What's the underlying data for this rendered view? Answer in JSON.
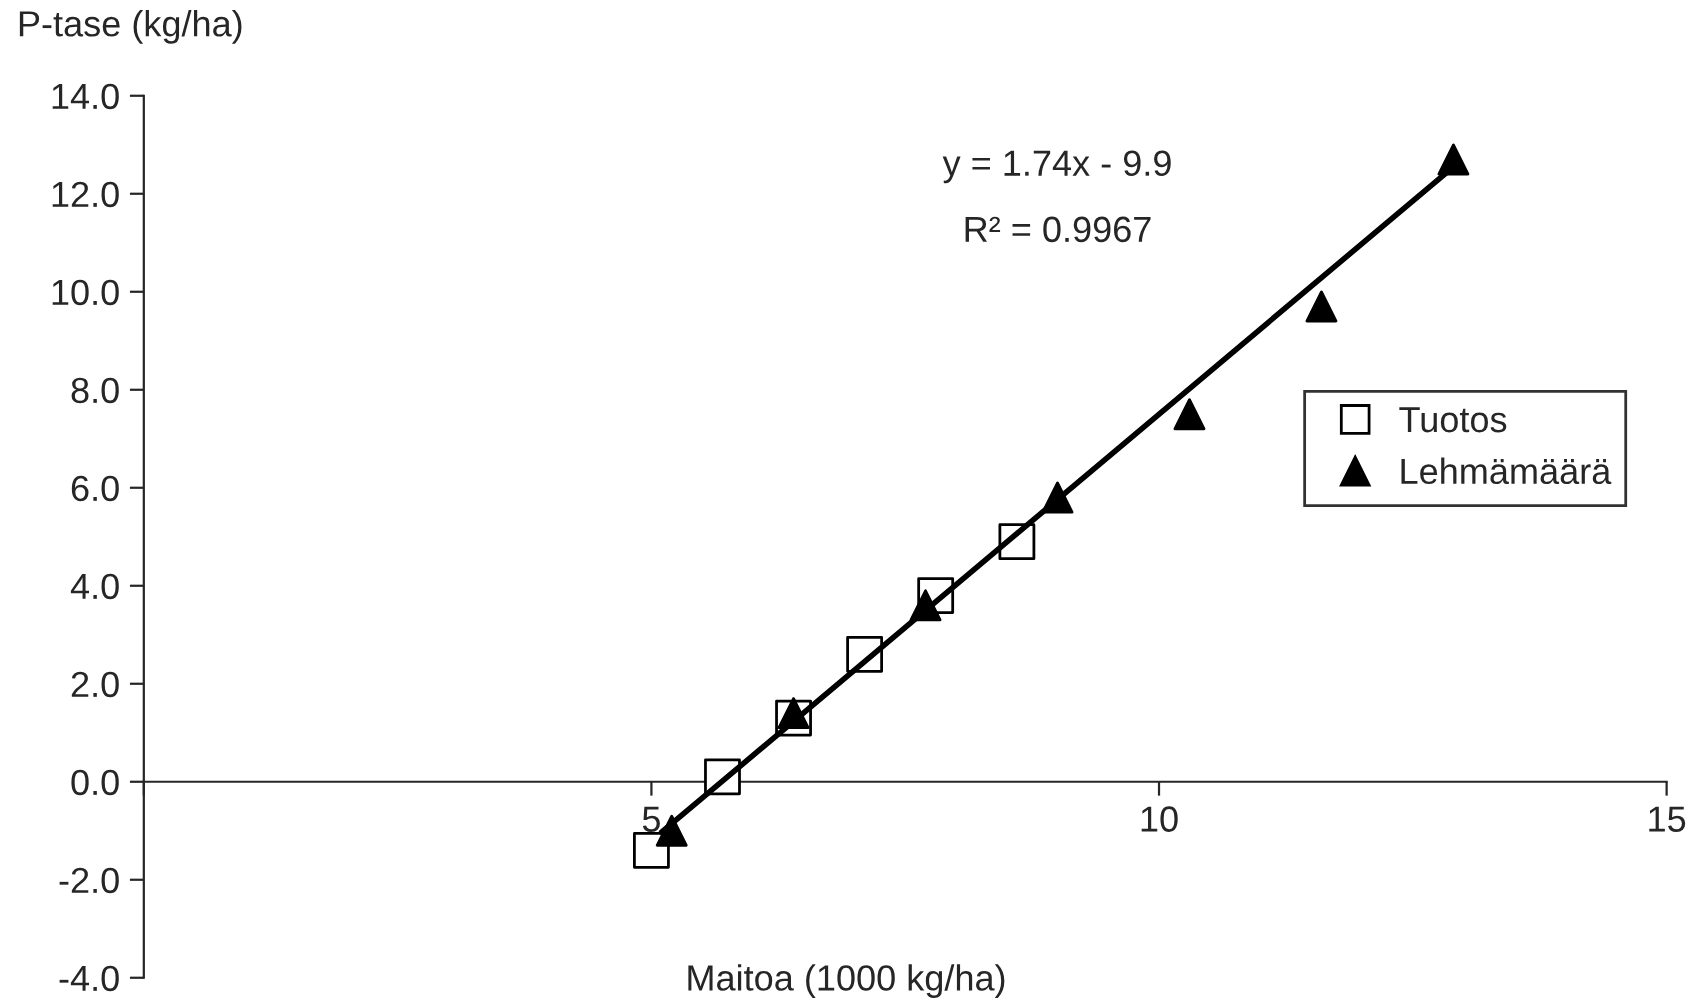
{
  "chart_data": {
    "type": "scatter",
    "xlabel": "Maitoa (1000 kg/ha)",
    "ylabel": "P-tase (kg/ha)",
    "xlim": [
      0,
      15
    ],
    "xticks": [
      {
        "value": 0,
        "label": null
      },
      5,
      10,
      15
    ],
    "ylim": [
      -4,
      14
    ],
    "yticks": [
      {
        "value": -4,
        "label": "-4.0"
      },
      {
        "value": -2,
        "label": "-2.0"
      },
      {
        "value": 0,
        "label": "0.0"
      },
      {
        "value": 2,
        "label": "2.0"
      },
      {
        "value": 4,
        "label": "4.0"
      },
      {
        "value": 6,
        "label": "6.0"
      },
      {
        "value": 8,
        "label": "8.0"
      },
      {
        "value": 10,
        "label": "10.0"
      },
      {
        "value": 12,
        "label": "12.0"
      },
      {
        "value": 14,
        "label": "14.0"
      }
    ],
    "series": [
      {
        "name": "Tuotos",
        "color": "#000000",
        "marker": "square",
        "x": [
          5.0,
          5.7,
          6.4,
          7.1,
          7.8,
          8.6
        ],
        "values": [
          -1.4,
          0.1,
          1.3,
          2.6,
          3.8,
          4.9
        ]
      },
      {
        "name": "Lehmämäärä",
        "color": "#000000",
        "marker": "triangle",
        "x": [
          5.2,
          6.4,
          7.7,
          9.0,
          10.3,
          11.6,
          12.9
        ],
        "values": [
          -1.0,
          1.4,
          3.6,
          5.8,
          7.5,
          9.7,
          12.7
        ]
      },
      {
        "type": "line",
        "color": "#000000",
        "x": [
          5.1,
          12.9
        ],
        "values": [
          -1.03,
          12.55
        ]
      }
    ],
    "annotations": [
      "y = 1.74x - 9.9",
      "R² = 0.9967"
    ],
    "legend": "right",
    "grid": false
  }
}
